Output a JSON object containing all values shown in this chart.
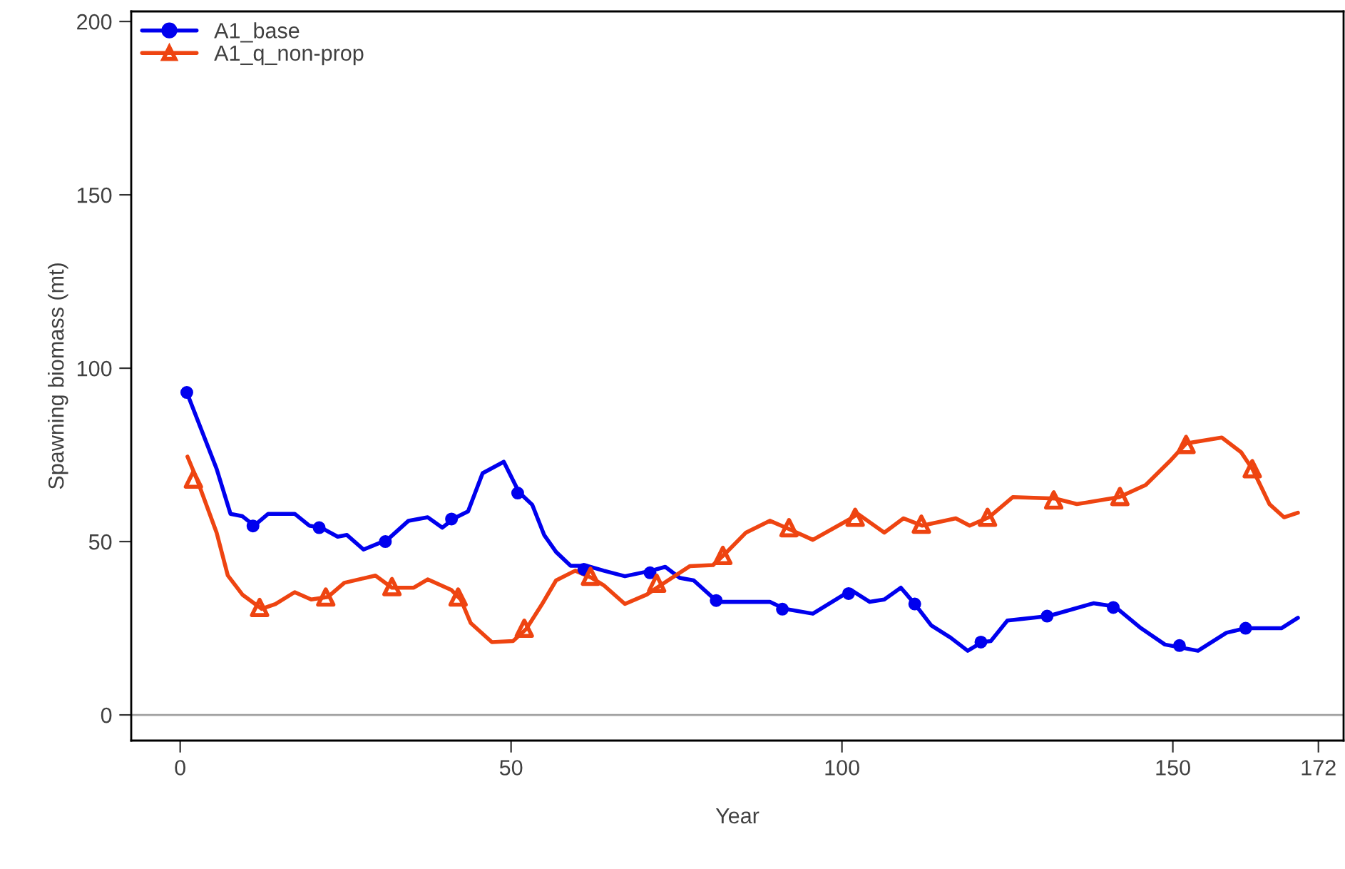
{
  "chart_data": {
    "type": "line",
    "xlabel": "Year",
    "ylabel": "Spawning biomass (mt)",
    "xlim": [
      -7.4,
      175.8
    ],
    "ylim": [
      -7.4,
      202.9
    ],
    "xticks": [
      0,
      50,
      100,
      150,
      172
    ],
    "yticks": [
      0,
      50,
      100,
      150,
      200
    ],
    "grid": false,
    "legend": "top left",
    "line_style": "solid",
    "ref_lines": [
      {
        "axis": "y",
        "value": 0,
        "color": "#a0a0a0"
      }
    ],
    "series": [
      {
        "name": "A1_base",
        "color": "#0000ee",
        "x": [
          1,
          5.5,
          7.6,
          9.4,
          11.2,
          13.3,
          17.3,
          19.5,
          21.3,
          23.8,
          25.2,
          27.7,
          31.3,
          34.5,
          37.4,
          39.6,
          41.4,
          43.5,
          45.7,
          48.9,
          51.2,
          53.2,
          55,
          56.8,
          59,
          61.5,
          64,
          67.2,
          71.2,
          73.3,
          75.5,
          77.6,
          81.2,
          89.1,
          91.3,
          95.6,
          101.4,
          104.2,
          106.4,
          108.9,
          111,
          113.5,
          116.4,
          119,
          121.2,
          122.5,
          125,
          131.2,
          138,
          141.2,
          145.2,
          148.8,
          153.8,
          158.1,
          161,
          166.4,
          168.9
        ],
        "values": [
          93,
          71,
          58,
          57.3,
          54.6,
          58,
          58,
          54.6,
          54,
          51.4,
          51.9,
          47.7,
          50.5,
          56,
          57,
          54,
          56.7,
          58.7,
          69.7,
          73,
          64.2,
          60.6,
          51.9,
          47,
          43,
          43,
          41.6,
          40,
          41.6,
          42.7,
          39.5,
          38.8,
          32.6,
          32.6,
          30.6,
          29.2,
          36,
          32.6,
          33.3,
          36.7,
          32,
          25.8,
          22.3,
          18.5,
          21,
          21.3,
          27.2,
          28.5,
          32.2,
          31.3,
          25,
          20.3,
          18.5,
          23.7,
          25,
          25,
          28
        ]
      },
      {
        "name": "A1_q_non-prop",
        "color": "#ee4411",
        "x": [
          1.1,
          2.6,
          5.5,
          7.2,
          9.4,
          12.3,
          14.4,
          17.3,
          19.8,
          22.3,
          24.8,
          29.5,
          32,
          35.3,
          37.4,
          41,
          42.4,
          43.9,
          47.1,
          50.3,
          52.3,
          54.7,
          56.8,
          59.7,
          62.2,
          64,
          67.2,
          70.5,
          72.6,
          77,
          80.5,
          82.3,
          85.5,
          89.1,
          92,
          95.6,
          101.4,
          102.4,
          106.4,
          109.3,
          112.1,
          117.2,
          119.3,
          122.2,
          125.8,
          132.2,
          135.5,
          141.9,
          145.9,
          149.5,
          152,
          157.4,
          160.3,
          162.1,
          164.6,
          166.8,
          168.9
        ],
        "values": [
          74.5,
          67.6,
          52.6,
          40.2,
          34.7,
          30.6,
          32,
          35.4,
          33.3,
          34,
          38.1,
          40.2,
          36.7,
          36.7,
          39.1,
          36,
          33.3,
          26.5,
          21,
          21.3,
          24.8,
          32,
          38.8,
          41.6,
          39.5,
          37.4,
          32,
          34.7,
          37.4,
          42.9,
          43.2,
          46.4,
          52.6,
          56,
          53.6,
          50.5,
          56.7,
          58,
          52.6,
          56.7,
          54.6,
          56.7,
          54.6,
          57,
          62.8,
          62.4,
          60.8,
          62.8,
          66.3,
          73.1,
          78.3,
          80,
          75.8,
          70.7,
          60.8,
          57,
          58.3
        ]
      },
      {
        "type": "scatter",
        "color": "#0000ee",
        "marker": "circle",
        "x": [
          1,
          11,
          21,
          31,
          41,
          51,
          61,
          71,
          81,
          91,
          101,
          111,
          121,
          131,
          141,
          151,
          161
        ],
        "values": [
          93,
          54.5,
          54,
          50,
          56.5,
          64,
          42,
          41,
          33,
          30.5,
          35,
          32,
          21,
          28.5,
          31,
          20,
          25
        ]
      },
      {
        "type": "scatter",
        "color": "#ee4411",
        "marker": "triangle",
        "x": [
          2,
          12,
          22,
          32,
          42,
          52,
          62,
          72,
          82,
          92,
          102,
          112,
          122,
          132,
          142,
          152,
          162
        ],
        "values": [
          68,
          31,
          34,
          37,
          34,
          25,
          40,
          38,
          46,
          54,
          57,
          55,
          57,
          62,
          63,
          78,
          71
        ]
      }
    ]
  }
}
